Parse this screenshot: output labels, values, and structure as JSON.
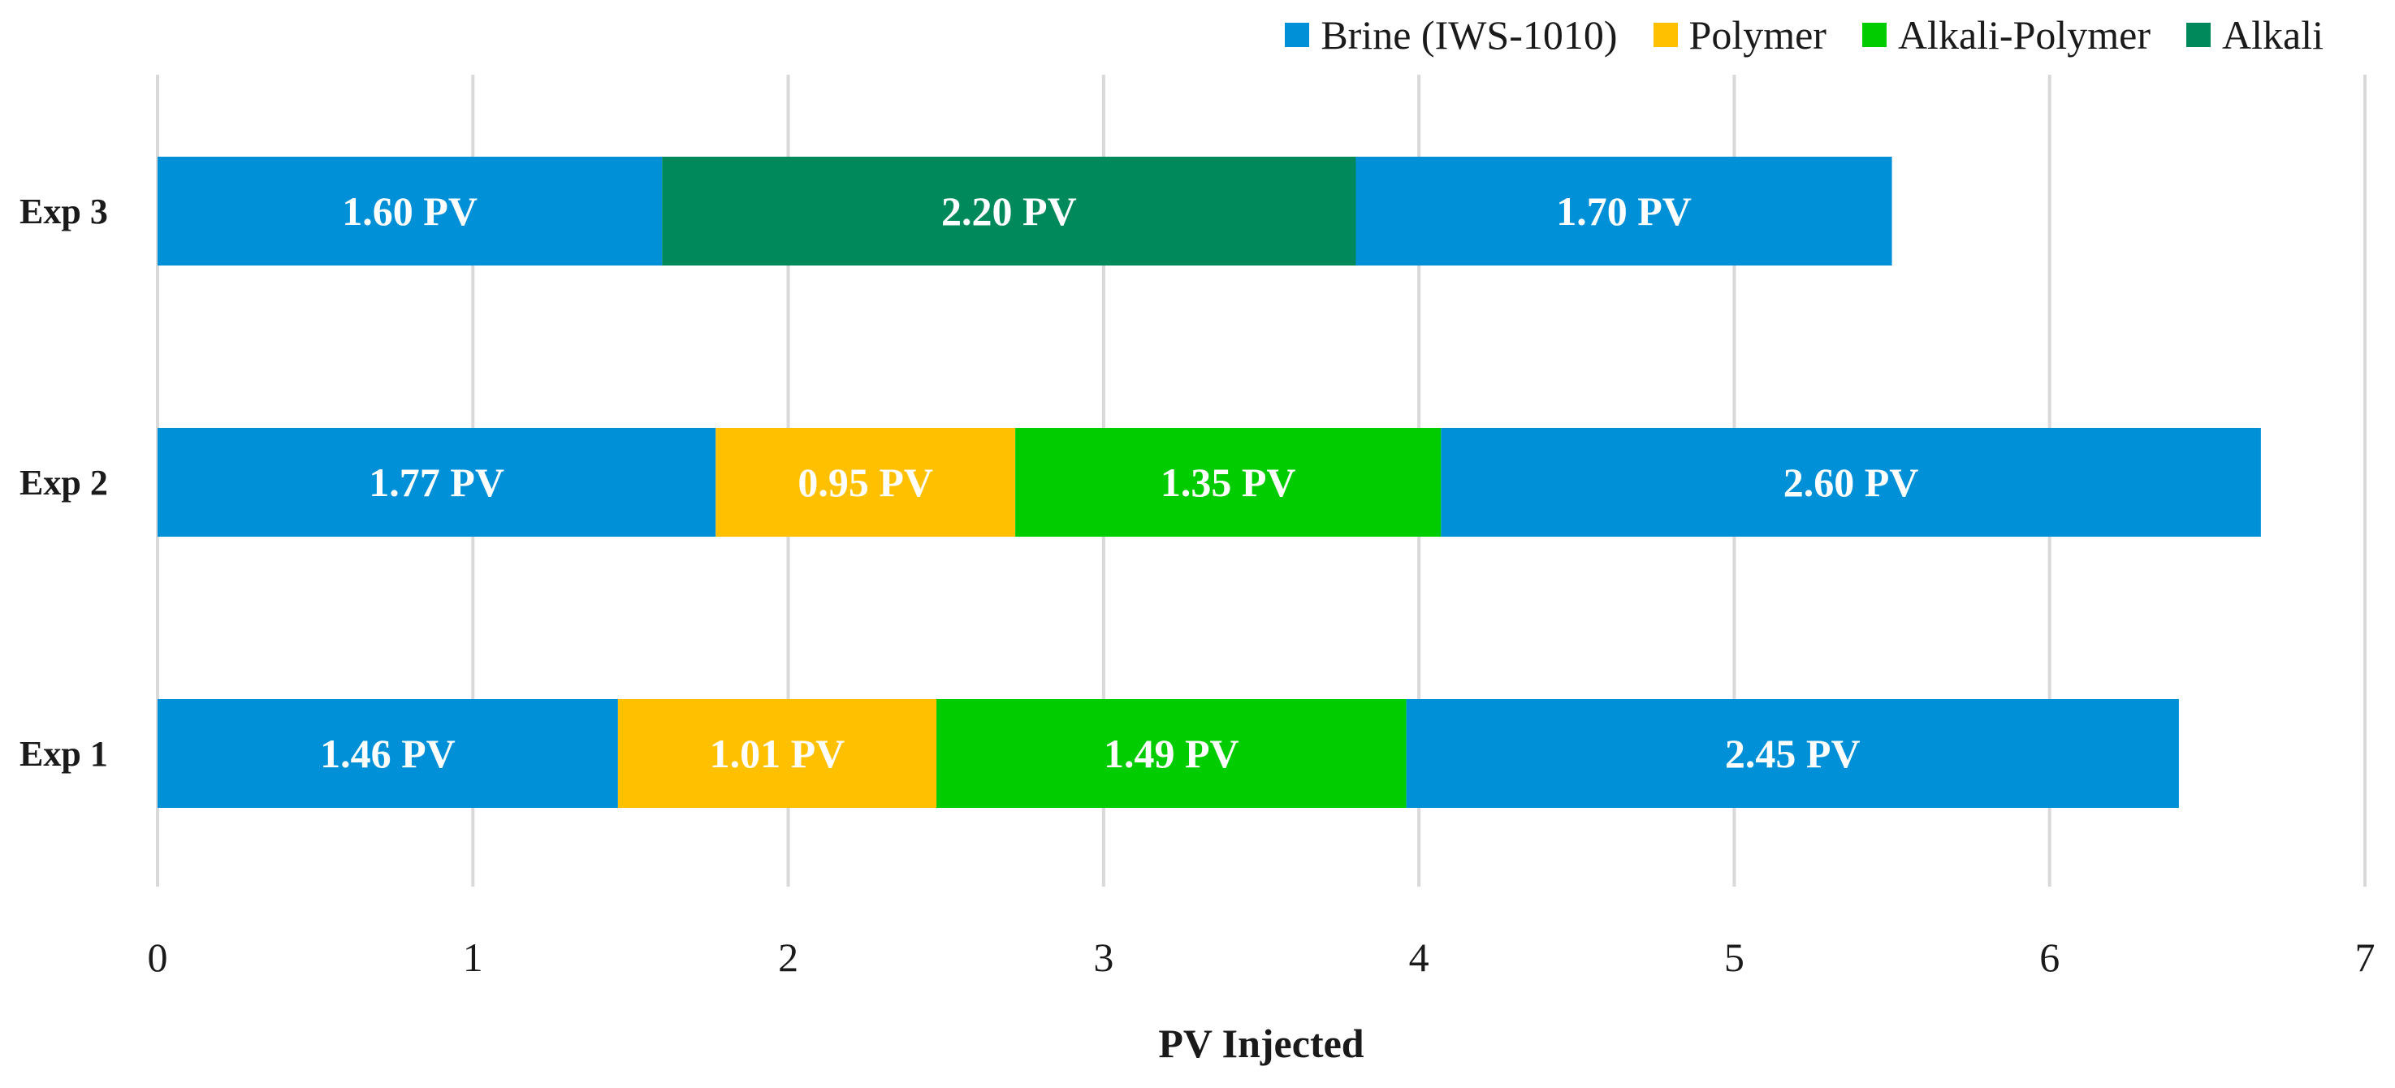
{
  "chart_data": {
    "type": "bar",
    "orientation": "horizontal",
    "stacked": true,
    "title": "",
    "xlabel": "PV Injected",
    "ylabel": "",
    "xlim": [
      0,
      7
    ],
    "x_ticks": [
      0,
      1,
      2,
      3,
      4,
      5,
      6,
      7
    ],
    "grid": "vertical",
    "legend_position": "top-right",
    "legend": [
      {
        "name": "Brine (IWS-1010)",
        "color": "#0090D8"
      },
      {
        "name": "Polymer",
        "color": "#FFC000"
      },
      {
        "name": "Alkali-Polymer",
        "color": "#00CC00"
      },
      {
        "name": "Alkali",
        "color": "#00895A"
      }
    ],
    "categories": [
      "Exp 3",
      "Exp 2",
      "Exp 1"
    ],
    "bars": [
      {
        "category": "Exp 3",
        "segments": [
          {
            "series": "Brine (IWS-1010)",
            "value": 1.6,
            "label": "1.60 PV"
          },
          {
            "series": "Alkali",
            "value": 2.2,
            "label": "2.20 PV"
          },
          {
            "series": "Brine (IWS-1010)",
            "value": 1.7,
            "label": "1.70 PV"
          }
        ]
      },
      {
        "category": "Exp 2",
        "segments": [
          {
            "series": "Brine (IWS-1010)",
            "value": 1.77,
            "label": "1.77 PV"
          },
          {
            "series": "Polymer",
            "value": 0.95,
            "label": "0.95 PV"
          },
          {
            "series": "Alkali-Polymer",
            "value": 1.35,
            "label": "1.35 PV"
          },
          {
            "series": "Brine (IWS-1010)",
            "value": 2.6,
            "label": "2.60 PV"
          }
        ]
      },
      {
        "category": "Exp 1",
        "segments": [
          {
            "series": "Brine (IWS-1010)",
            "value": 1.46,
            "label": "1.46 PV"
          },
          {
            "series": "Polymer",
            "value": 1.01,
            "label": "1.01 PV"
          },
          {
            "series": "Alkali-Polymer",
            "value": 1.49,
            "label": "1.49 PV"
          },
          {
            "series": "Brine (IWS-1010)",
            "value": 2.45,
            "label": "2.45 PV"
          }
        ]
      }
    ]
  }
}
